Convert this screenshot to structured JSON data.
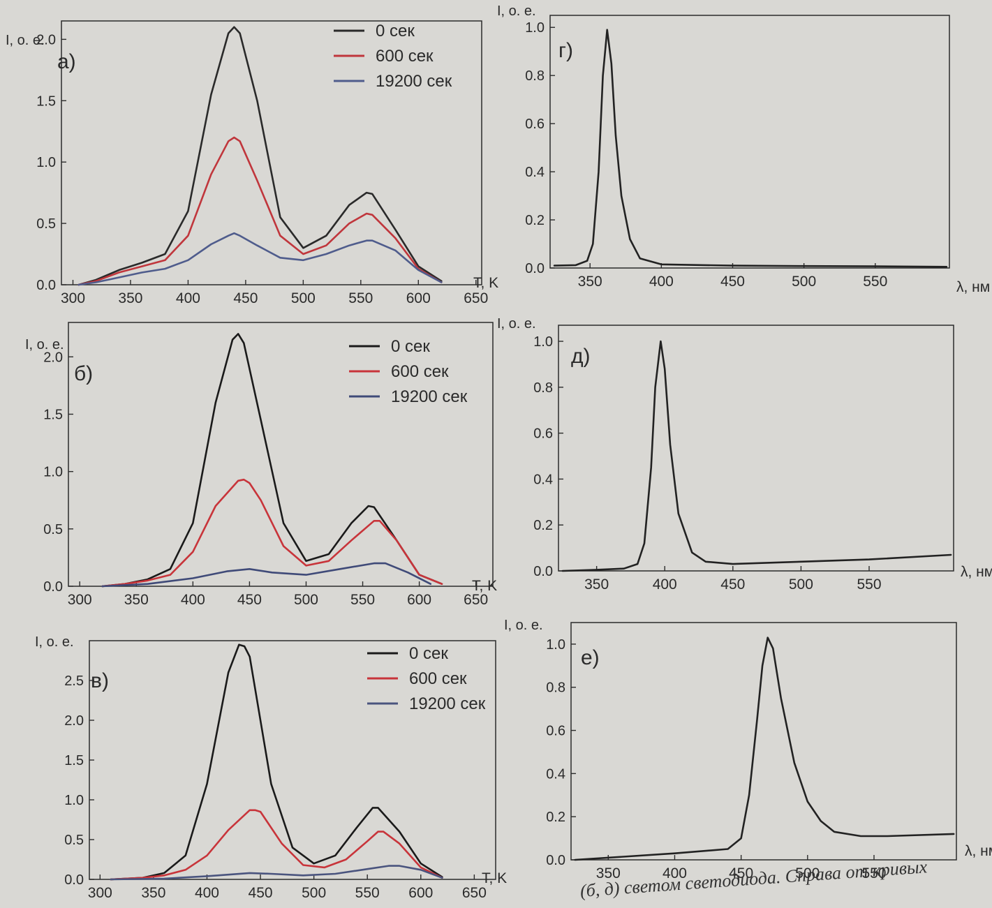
{
  "caption_fragment": "(б, д) светом светодиода. Справа от кривых",
  "chart_data": [
    {
      "type": "line",
      "panel_label": "а)",
      "xlabel": "T, K",
      "ylabel": "I, о. е.",
      "xlim": [
        290,
        655
      ],
      "ylim": [
        0,
        2.15
      ],
      "xticks": [
        300,
        350,
        400,
        450,
        500,
        550,
        600,
        650
      ],
      "yticks": [
        0.0,
        0.5,
        1.0,
        1.5,
        2.0
      ],
      "legend_position": "top-right",
      "grid": false,
      "series": [
        {
          "name": "0 сек",
          "color": "#2a2a2a",
          "x": [
            305,
            320,
            340,
            360,
            380,
            400,
            420,
            435,
            440,
            445,
            460,
            480,
            500,
            520,
            540,
            555,
            560,
            580,
            600,
            620
          ],
          "y": [
            0.0,
            0.04,
            0.12,
            0.18,
            0.25,
            0.6,
            1.55,
            2.05,
            2.1,
            2.05,
            1.5,
            0.55,
            0.3,
            0.4,
            0.65,
            0.75,
            0.74,
            0.45,
            0.15,
            0.03
          ]
        },
        {
          "name": "600 сек",
          "color": "#c0363c",
          "x": [
            305,
            320,
            340,
            360,
            380,
            400,
            420,
            435,
            440,
            445,
            460,
            480,
            500,
            520,
            540,
            555,
            560,
            580,
            600,
            620
          ],
          "y": [
            0.0,
            0.03,
            0.1,
            0.15,
            0.2,
            0.4,
            0.9,
            1.17,
            1.2,
            1.17,
            0.85,
            0.4,
            0.25,
            0.32,
            0.5,
            0.58,
            0.57,
            0.38,
            0.13,
            0.02
          ]
        },
        {
          "name": "19200 сек",
          "color": "#4f5c8c",
          "x": [
            305,
            320,
            340,
            360,
            380,
            400,
            420,
            435,
            440,
            445,
            460,
            480,
            500,
            520,
            540,
            555,
            560,
            580,
            600,
            620
          ],
          "y": [
            0.0,
            0.02,
            0.06,
            0.1,
            0.13,
            0.2,
            0.33,
            0.4,
            0.42,
            0.4,
            0.32,
            0.22,
            0.2,
            0.25,
            0.32,
            0.36,
            0.36,
            0.28,
            0.12,
            0.02
          ]
        }
      ]
    },
    {
      "type": "line",
      "panel_label": "б)",
      "xlabel": "T, K",
      "ylabel": "I, о. е.",
      "xlim": [
        290,
        665
      ],
      "ylim": [
        0,
        2.3
      ],
      "xticks": [
        300,
        350,
        400,
        450,
        500,
        550,
        600,
        650
      ],
      "yticks": [
        0.0,
        0.5,
        1.0,
        1.5,
        2.0
      ],
      "legend_position": "top-right",
      "grid": false,
      "series": [
        {
          "name": "0 сек",
          "color": "#1a1a1a",
          "x": [
            320,
            340,
            360,
            380,
            400,
            420,
            435,
            440,
            445,
            460,
            480,
            500,
            520,
            540,
            555,
            560,
            580,
            600,
            620
          ],
          "y": [
            0.0,
            0.02,
            0.06,
            0.15,
            0.55,
            1.6,
            2.15,
            2.2,
            2.12,
            1.45,
            0.55,
            0.22,
            0.28,
            0.55,
            0.7,
            0.69,
            0.4,
            0.1,
            0.02
          ]
        },
        {
          "name": "600 сек",
          "color": "#c8343a",
          "x": [
            320,
            340,
            360,
            380,
            400,
            420,
            440,
            445,
            450,
            460,
            480,
            500,
            520,
            540,
            560,
            565,
            580,
            600,
            620
          ],
          "y": [
            0.0,
            0.02,
            0.05,
            0.1,
            0.3,
            0.7,
            0.92,
            0.93,
            0.9,
            0.75,
            0.35,
            0.18,
            0.22,
            0.4,
            0.57,
            0.57,
            0.4,
            0.1,
            0.02
          ]
        },
        {
          "name": "19200 сек",
          "color": "#3f4a78",
          "x": [
            320,
            360,
            400,
            430,
            450,
            470,
            500,
            530,
            560,
            570,
            590,
            610
          ],
          "y": [
            0.0,
            0.02,
            0.07,
            0.13,
            0.15,
            0.12,
            0.1,
            0.15,
            0.2,
            0.2,
            0.12,
            0.02
          ]
        }
      ]
    },
    {
      "type": "line",
      "panel_label": "в)",
      "xlabel": "T, K",
      "ylabel": "I, о. е.",
      "xlim": [
        290,
        670
      ],
      "ylim": [
        0,
        3.0
      ],
      "xticks": [
        300,
        350,
        400,
        450,
        500,
        550,
        600,
        650
      ],
      "yticks": [
        0.0,
        0.5,
        1.0,
        1.5,
        2.0,
        2.5
      ],
      "legend_position": "top-right",
      "grid": false,
      "series": [
        {
          "name": "0 сек",
          "color": "#1a1a1a",
          "x": [
            310,
            340,
            360,
            380,
            400,
            420,
            430,
            435,
            440,
            460,
            480,
            500,
            520,
            540,
            555,
            560,
            580,
            600,
            620
          ],
          "y": [
            0.0,
            0.02,
            0.08,
            0.3,
            1.2,
            2.6,
            2.95,
            2.93,
            2.8,
            1.2,
            0.4,
            0.2,
            0.3,
            0.65,
            0.9,
            0.9,
            0.6,
            0.2,
            0.03
          ]
        },
        {
          "name": "600 сек",
          "color": "#c8343a",
          "x": [
            310,
            340,
            360,
            380,
            400,
            420,
            440,
            445,
            450,
            470,
            490,
            510,
            530,
            550,
            560,
            565,
            580,
            600,
            620
          ],
          "y": [
            0.0,
            0.02,
            0.05,
            0.12,
            0.3,
            0.62,
            0.87,
            0.87,
            0.85,
            0.45,
            0.18,
            0.15,
            0.25,
            0.48,
            0.6,
            0.6,
            0.45,
            0.15,
            0.02
          ]
        },
        {
          "name": "19200 сек",
          "color": "#4a547e",
          "x": [
            310,
            360,
            400,
            440,
            460,
            490,
            520,
            550,
            570,
            580,
            600,
            620
          ],
          "y": [
            0.0,
            0.01,
            0.04,
            0.08,
            0.07,
            0.05,
            0.07,
            0.13,
            0.17,
            0.17,
            0.12,
            0.02
          ]
        }
      ]
    },
    {
      "type": "line",
      "panel_label": "г)",
      "xlabel": "λ, нм",
      "ylabel": "I, о. е.",
      "xlim": [
        322,
        602
      ],
      "ylim": [
        0,
        1.05
      ],
      "xticks": [
        350,
        400,
        450,
        500,
        550
      ],
      "yticks": [
        0.0,
        0.2,
        0.4,
        0.6,
        0.8,
        1.0
      ],
      "grid": false,
      "series": [
        {
          "color": "#222222",
          "x": [
            325,
            340,
            348,
            352,
            356,
            359,
            362,
            365,
            368,
            372,
            378,
            385,
            400,
            450,
            500,
            550,
            600
          ],
          "y": [
            0.01,
            0.012,
            0.03,
            0.1,
            0.4,
            0.8,
            0.99,
            0.85,
            0.55,
            0.3,
            0.12,
            0.04,
            0.015,
            0.01,
            0.008,
            0.007,
            0.005
          ]
        }
      ]
    },
    {
      "type": "line",
      "panel_label": "д)",
      "xlabel": "λ, нм",
      "ylabel": "I, о. е.",
      "xlim": [
        322,
        612
      ],
      "ylim": [
        0,
        1.07
      ],
      "xticks": [
        350,
        400,
        450,
        500,
        550
      ],
      "yticks": [
        0.0,
        0.2,
        0.4,
        0.6,
        0.8,
        1.0
      ],
      "grid": false,
      "series": [
        {
          "color": "#222222",
          "x": [
            325,
            350,
            370,
            380,
            385,
            390,
            393,
            397,
            400,
            404,
            410,
            420,
            430,
            450,
            500,
            550,
            610
          ],
          "y": [
            0.0,
            0.005,
            0.01,
            0.03,
            0.12,
            0.45,
            0.8,
            1.0,
            0.88,
            0.55,
            0.25,
            0.08,
            0.04,
            0.03,
            0.04,
            0.05,
            0.07
          ]
        }
      ]
    },
    {
      "type": "line",
      "panel_label": "е)",
      "xlabel": "λ, нм",
      "ylabel": "I, о. е.",
      "xlim": [
        322,
        612
      ],
      "ylim": [
        0,
        1.1
      ],
      "xticks": [
        350,
        400,
        450,
        500,
        550
      ],
      "yticks": [
        0.0,
        0.2,
        0.4,
        0.6,
        0.8,
        1.0
      ],
      "grid": false,
      "series": [
        {
          "color": "#222222",
          "x": [
            325,
            400,
            440,
            450,
            456,
            462,
            466,
            470,
            474,
            480,
            490,
            500,
            510,
            520,
            540,
            560,
            610
          ],
          "y": [
            0.0,
            0.03,
            0.05,
            0.1,
            0.3,
            0.65,
            0.9,
            1.03,
            0.98,
            0.75,
            0.45,
            0.27,
            0.18,
            0.13,
            0.11,
            0.11,
            0.12
          ]
        }
      ]
    }
  ]
}
